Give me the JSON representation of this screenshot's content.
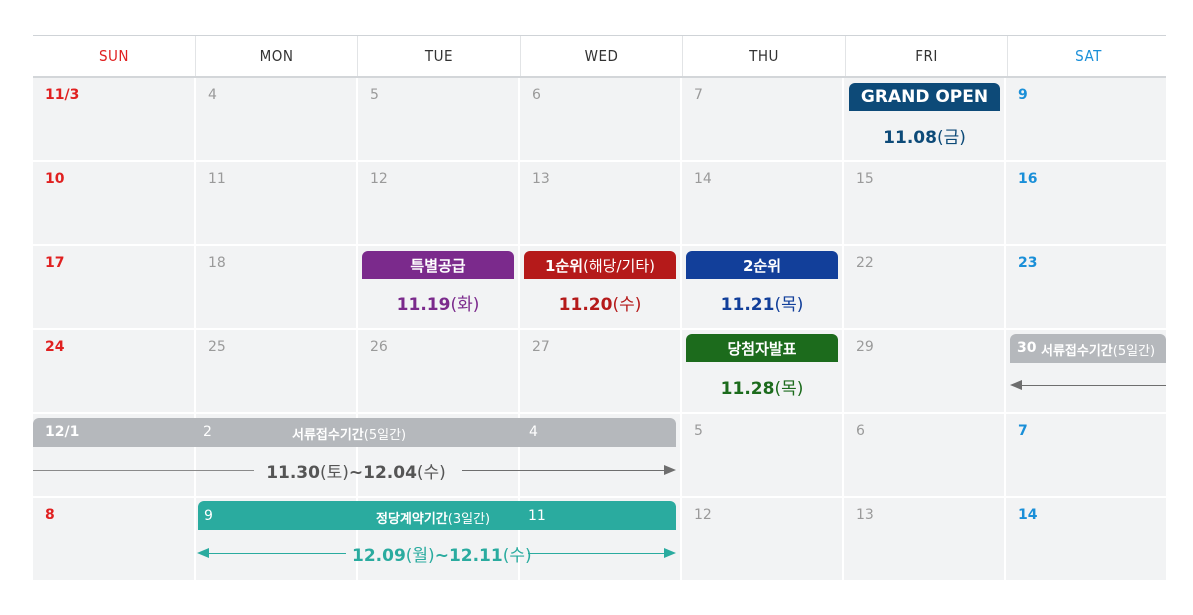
{
  "weekdays": [
    "SUN",
    "MON",
    "TUE",
    "WED",
    "THU",
    "FRI",
    "SAT"
  ],
  "rows": [
    [
      "11/3",
      "4",
      "5",
      "6",
      "7",
      "",
      "9"
    ],
    [
      "10",
      "11",
      "12",
      "13",
      "14",
      "15",
      "16"
    ],
    [
      "17",
      "18",
      "",
      "",
      "",
      "22",
      "23"
    ],
    [
      "24",
      "25",
      "26",
      "27",
      "",
      "29",
      ""
    ],
    [
      "",
      "",
      "",
      "",
      "5",
      "6",
      "7"
    ],
    [
      "8",
      "",
      "",
      "",
      "12",
      "13",
      "14"
    ]
  ],
  "events": {
    "grand_open": {
      "label": "GRAND OPEN",
      "date": "11.08",
      "dow": "(금)"
    },
    "special": {
      "label": "특별공급",
      "date": "11.19",
      "dow": "(화)"
    },
    "first": {
      "label": "1순위",
      "sub": " (해당/기타)",
      "date": "11.20",
      "dow": "(수)"
    },
    "second": {
      "label": "2순위",
      "date": "11.21",
      "dow": "(목)"
    },
    "winner": {
      "label": "당첨자발표",
      "date": "11.28",
      "dow": "(목)"
    },
    "docs_week1": {
      "day": "30",
      "label": "서류접수기간",
      "sub": "(5일간)"
    },
    "docs_week2": {
      "d1": "12/1",
      "d2": "2",
      "d3": "4",
      "label": "서류접수기간",
      "sub": "(5일간)",
      "start": "11.30",
      "start_dow": "(토)",
      "sep": "~",
      "end": "12.04",
      "end_dow": "(수)"
    },
    "contract": {
      "d1": "9",
      "d2": "11",
      "label": "정당계약기간",
      "sub": "(3일간)",
      "start": "12.09",
      "start_dow": "(월)",
      "sep": "~",
      "end": "12.11",
      "end_dow": "(수)"
    }
  },
  "colors": {
    "sun": "#e02020",
    "sat": "#1a8fd8",
    "grand_open": "#0d4a78",
    "special": "#7b2a8c",
    "first": "#b51a1a",
    "second": "#123f9a",
    "winner": "#1c6b1c",
    "docs": "#b5b8bc",
    "contract": "#2aab9f"
  }
}
